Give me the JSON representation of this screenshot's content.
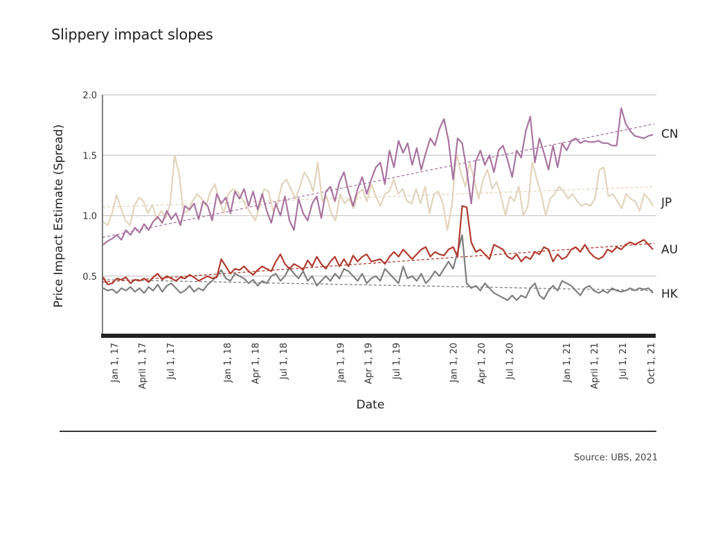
{
  "title": "Slippery impact slopes",
  "source": "Source: UBS, 2021",
  "chart_data": {
    "type": "line",
    "title": "Slippery impact slopes",
    "xlabel": "Date",
    "ylabel": "Price Impact Estimate (Spread)",
    "ylim": [
      0,
      2.0
    ],
    "yticks": [
      {
        "value": 0.5,
        "label": "0.5"
      },
      {
        "value": 1.0,
        "label": "1.0"
      },
      {
        "value": 1.5,
        "label": "1.5"
      },
      {
        "value": 2.0,
        "label": "2.0"
      }
    ],
    "xlim": [
      "2016-11-15",
      "2021-10-15"
    ],
    "xticks": [
      {
        "date": "2017-01-01",
        "label": "Jan 1, 17"
      },
      {
        "date": "2017-04-01",
        "label": "April 1, 17"
      },
      {
        "date": "2017-07-01",
        "label": "Jul 1, 17"
      },
      {
        "date": "2018-01-01",
        "label": "Jan 1, 18"
      },
      {
        "date": "2018-04-01",
        "label": "Apr 1, 18"
      },
      {
        "date": "2018-07-01",
        "label": "Jul 1, 18"
      },
      {
        "date": "2019-01-01",
        "label": "Jan 1, 19"
      },
      {
        "date": "2019-04-01",
        "label": "Apr 1, 19"
      },
      {
        "date": "2019-07-01",
        "label": "Jul 1, 19"
      },
      {
        "date": "2020-01-01",
        "label": "Jan 1, 20"
      },
      {
        "date": "2020-04-01",
        "label": "Apr 1, 20"
      },
      {
        "date": "2020-07-01",
        "label": "Jul 1, 20"
      },
      {
        "date": "2021-01-01",
        "label": "Jan 1, 21"
      },
      {
        "date": "2021-04-01",
        "label": "April 1, 21"
      },
      {
        "date": "2021-07-01",
        "label": "Jul 1, 21"
      },
      {
        "date": "2021-10-01",
        "label": "Oct 1, 21"
      }
    ],
    "grid": true,
    "legend": "right-inline",
    "x_start": "2016-11-15",
    "x_end": "2021-10-08",
    "series": [
      {
        "name": "CN",
        "color": "#a8739f",
        "trend": [
          0.82,
          1.76
        ],
        "values": [
          0.76,
          0.79,
          0.81,
          0.84,
          0.8,
          0.88,
          0.84,
          0.9,
          0.86,
          0.93,
          0.88,
          0.95,
          0.99,
          0.94,
          1.04,
          0.97,
          1.02,
          0.92,
          1.08,
          1.05,
          1.1,
          0.97,
          1.12,
          1.08,
          0.96,
          1.18,
          1.1,
          1.15,
          1.02,
          1.2,
          1.14,
          1.22,
          1.08,
          1.2,
          1.05,
          1.18,
          1.04,
          0.94,
          1.1,
          1.0,
          1.16,
          0.96,
          0.88,
          1.14,
          1.02,
          0.96,
          1.1,
          1.16,
          0.98,
          1.2,
          1.24,
          1.12,
          1.28,
          1.36,
          1.2,
          1.08,
          1.22,
          1.32,
          1.18,
          1.3,
          1.4,
          1.44,
          1.26,
          1.54,
          1.4,
          1.62,
          1.52,
          1.6,
          1.42,
          1.56,
          1.38,
          1.52,
          1.64,
          1.58,
          1.72,
          1.8,
          1.62,
          1.3,
          1.64,
          1.6,
          1.38,
          1.1,
          1.45,
          1.54,
          1.42,
          1.5,
          1.36,
          1.54,
          1.58,
          1.46,
          1.32,
          1.54,
          1.48,
          1.7,
          1.82,
          1.44,
          1.64,
          1.52,
          1.38,
          1.58,
          1.4,
          1.6,
          1.54,
          1.62,
          1.64,
          1.6,
          1.62,
          1.61,
          1.61,
          1.62,
          1.6,
          1.6,
          1.58,
          1.58,
          1.89,
          1.76,
          1.7,
          1.66,
          1.65,
          1.64,
          1.66,
          1.67
        ]
      },
      {
        "name": "JP",
        "color": "#e3d3bb",
        "trend": [
          1.07,
          1.24
        ],
        "values": [
          0.95,
          0.92,
          1.02,
          1.17,
          1.06,
          0.96,
          0.92,
          1.08,
          1.15,
          1.12,
          1.02,
          1.09,
          0.97,
          1.04,
          0.98,
          1.1,
          1.5,
          1.34,
          1.02,
          1.04,
          1.12,
          1.18,
          1.14,
          1.08,
          1.2,
          1.26,
          1.12,
          1.02,
          1.18,
          1.22,
          1.2,
          1.14,
          1.08,
          1.02,
          0.96,
          1.08,
          1.22,
          1.2,
          1.04,
          1.1,
          1.26,
          1.3,
          1.22,
          1.14,
          1.24,
          1.36,
          1.3,
          1.2,
          1.44,
          1.12,
          1.16,
          1.02,
          0.96,
          1.18,
          1.1,
          1.14,
          1.06,
          1.18,
          1.22,
          1.12,
          1.26,
          1.16,
          1.08,
          1.18,
          1.2,
          1.3,
          1.18,
          1.22,
          1.12,
          1.1,
          1.22,
          1.1,
          1.24,
          1.02,
          1.18,
          1.2,
          1.1,
          0.88,
          1.08,
          1.52,
          1.36,
          1.24,
          1.44,
          1.3,
          1.14,
          1.3,
          1.38,
          1.22,
          1.28,
          1.16,
          1.0,
          1.16,
          1.12,
          1.24,
          1.0,
          1.08,
          1.44,
          1.3,
          1.18,
          1.0,
          1.14,
          1.18,
          1.24,
          1.2,
          1.14,
          1.18,
          1.12,
          1.08,
          1.1,
          1.08,
          1.14,
          1.38,
          1.4,
          1.16,
          1.18,
          1.12,
          1.06,
          1.18,
          1.14,
          1.12,
          1.04,
          1.18,
          1.14,
          1.08
        ]
      },
      {
        "name": "AU",
        "color": "#b03a2e",
        "trend": [
          0.45,
          0.77
        ],
        "values": [
          0.49,
          0.43,
          0.44,
          0.48,
          0.47,
          0.49,
          0.44,
          0.47,
          0.46,
          0.48,
          0.45,
          0.49,
          0.52,
          0.47,
          0.5,
          0.48,
          0.46,
          0.49,
          0.48,
          0.51,
          0.49,
          0.46,
          0.48,
          0.5,
          0.48,
          0.49,
          0.64,
          0.58,
          0.52,
          0.56,
          0.55,
          0.58,
          0.54,
          0.51,
          0.55,
          0.58,
          0.56,
          0.54,
          0.62,
          0.68,
          0.6,
          0.56,
          0.6,
          0.58,
          0.55,
          0.63,
          0.58,
          0.66,
          0.6,
          0.56,
          0.62,
          0.66,
          0.58,
          0.64,
          0.58,
          0.67,
          0.62,
          0.66,
          0.68,
          0.62,
          0.63,
          0.64,
          0.6,
          0.66,
          0.7,
          0.66,
          0.72,
          0.68,
          0.64,
          0.68,
          0.72,
          0.74,
          0.66,
          0.7,
          0.68,
          0.67,
          0.72,
          0.74,
          0.66,
          1.08,
          1.07,
          0.78,
          0.7,
          0.72,
          0.68,
          0.64,
          0.76,
          0.74,
          0.72,
          0.66,
          0.64,
          0.68,
          0.62,
          0.66,
          0.64,
          0.7,
          0.68,
          0.74,
          0.72,
          0.62,
          0.68,
          0.64,
          0.66,
          0.72,
          0.74,
          0.7,
          0.76,
          0.7,
          0.66,
          0.64,
          0.66,
          0.72,
          0.7,
          0.74,
          0.72,
          0.76,
          0.78,
          0.76,
          0.78,
          0.8,
          0.76,
          0.72
        ]
      },
      {
        "name": "HK",
        "color": "#7d7d7d",
        "trend": [
          0.47,
          0.38
        ],
        "values": [
          0.4,
          0.38,
          0.39,
          0.36,
          0.4,
          0.38,
          0.41,
          0.37,
          0.4,
          0.36,
          0.41,
          0.38,
          0.43,
          0.37,
          0.42,
          0.44,
          0.4,
          0.36,
          0.38,
          0.42,
          0.37,
          0.4,
          0.38,
          0.43,
          0.46,
          0.5,
          0.55,
          0.48,
          0.46,
          0.52,
          0.5,
          0.48,
          0.44,
          0.47,
          0.42,
          0.46,
          0.44,
          0.5,
          0.52,
          0.46,
          0.5,
          0.57,
          0.52,
          0.48,
          0.54,
          0.46,
          0.5,
          0.42,
          0.46,
          0.5,
          0.46,
          0.52,
          0.48,
          0.56,
          0.54,
          0.5,
          0.46,
          0.52,
          0.44,
          0.48,
          0.5,
          0.46,
          0.56,
          0.52,
          0.48,
          0.44,
          0.58,
          0.48,
          0.5,
          0.46,
          0.52,
          0.44,
          0.48,
          0.54,
          0.5,
          0.56,
          0.62,
          0.56,
          0.7,
          0.84,
          0.44,
          0.4,
          0.42,
          0.38,
          0.44,
          0.4,
          0.36,
          0.34,
          0.32,
          0.3,
          0.34,
          0.3,
          0.34,
          0.32,
          0.4,
          0.44,
          0.34,
          0.31,
          0.38,
          0.42,
          0.38,
          0.46,
          0.44,
          0.42,
          0.38,
          0.34,
          0.4,
          0.42,
          0.38,
          0.36,
          0.38,
          0.36,
          0.4,
          0.38,
          0.37,
          0.38,
          0.4,
          0.38,
          0.4,
          0.39,
          0.4,
          0.36
        ]
      }
    ]
  }
}
